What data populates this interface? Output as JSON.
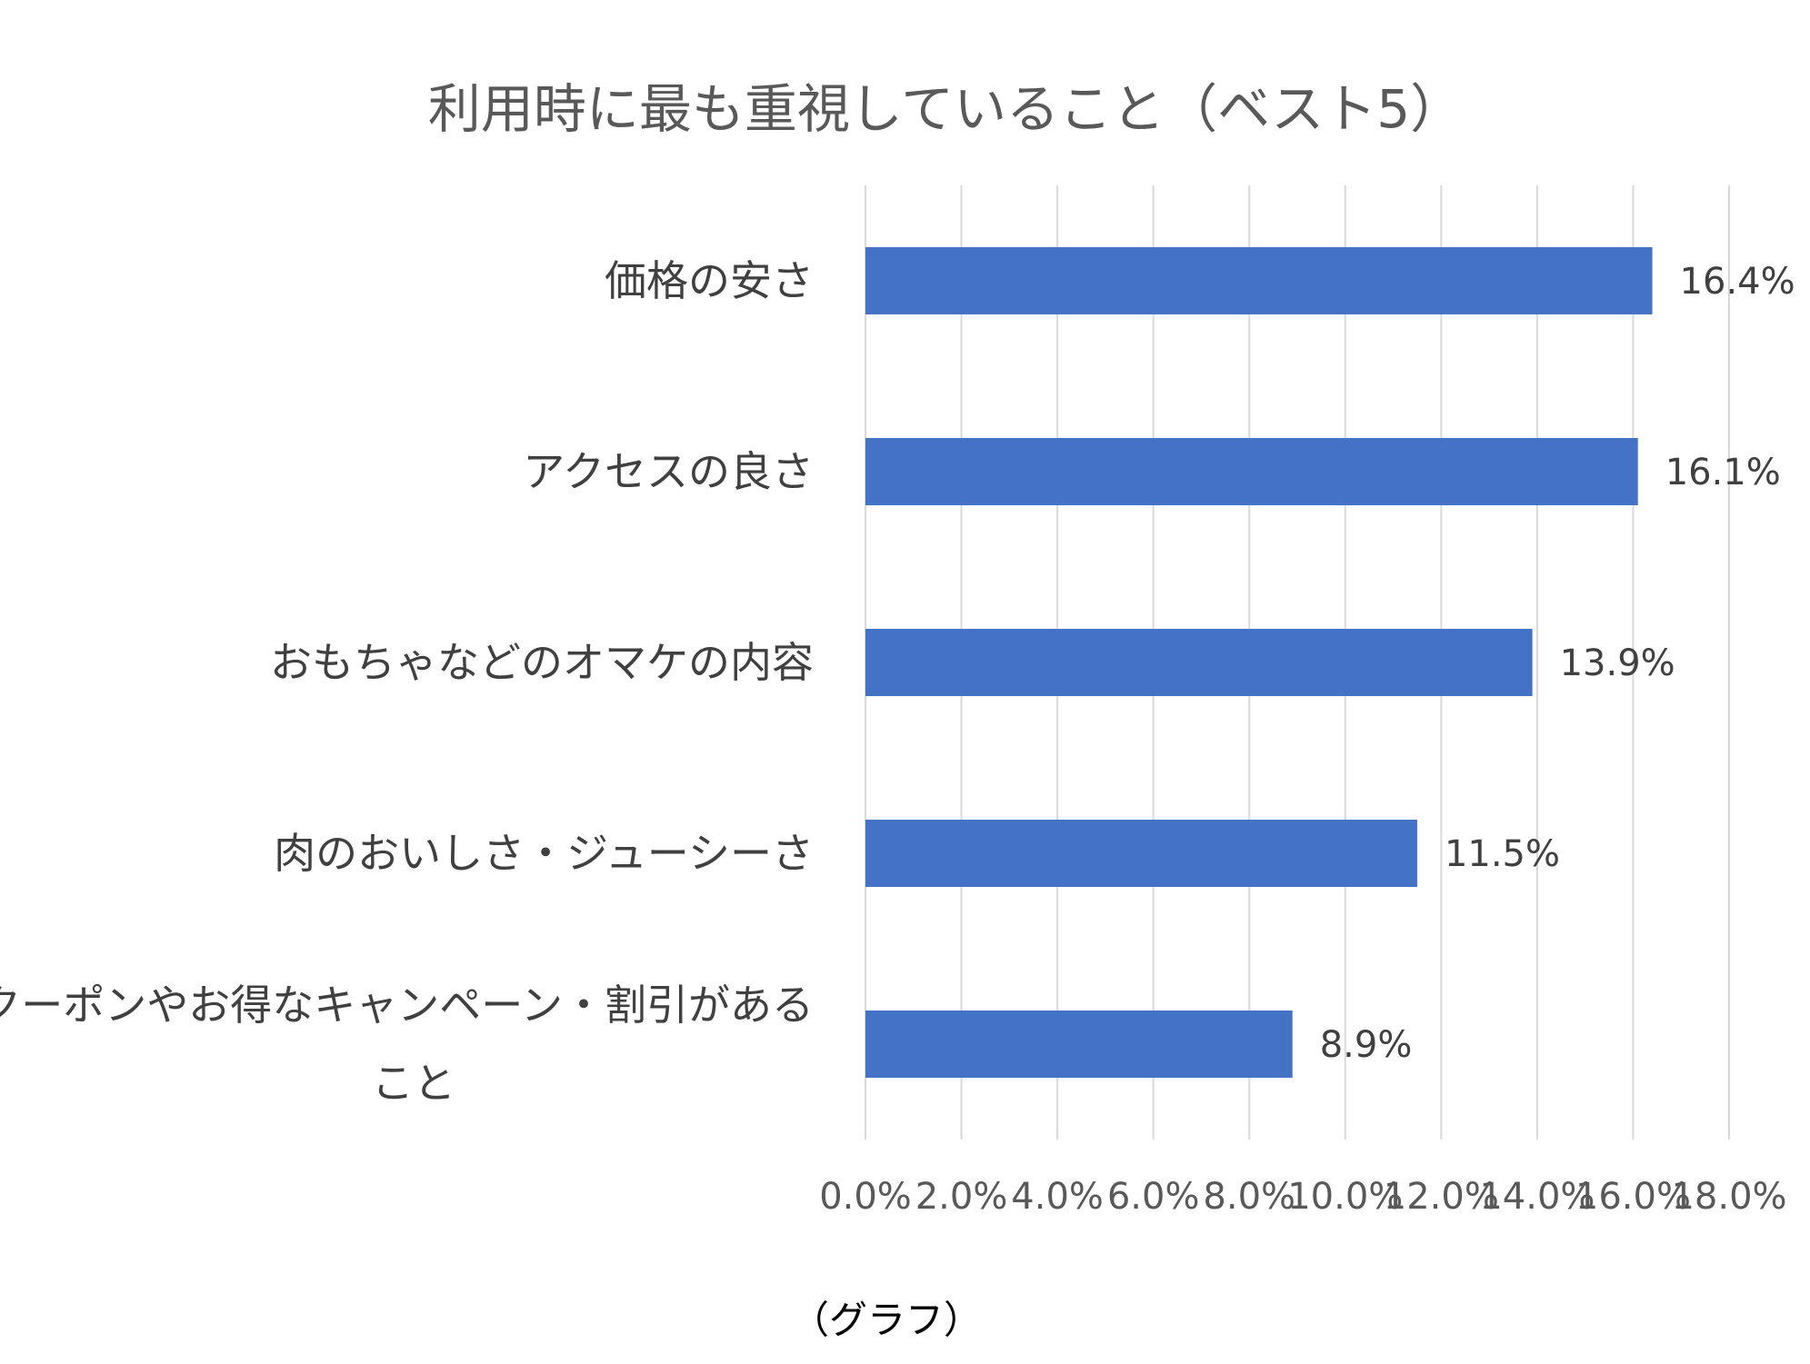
{
  "chart_data": {
    "type": "bar",
    "orientation": "horizontal",
    "title": "利用時に最も重視していること（ベスト5）",
    "categories": [
      "価格の安さ",
      "アクセスの良さ",
      "おもちゃなどのオマケの内容",
      "肉のおいしさ・ジューシーさ",
      "クーポンやお得なキャンペーン・割引があること"
    ],
    "category_lines": [
      [
        "価格の安さ"
      ],
      [
        "アクセスの良さ"
      ],
      [
        "おもちゃなどのオマケの内容"
      ],
      [
        "肉のおいしさ・ジューシーさ"
      ],
      [
        "クーポンやお得なキャンペーン・割引がある",
        "こと"
      ]
    ],
    "values": [
      16.4,
      16.1,
      13.9,
      11.5,
      8.9
    ],
    "data_labels": [
      "16.4%",
      "16.1%",
      "13.9%",
      "11.5%",
      "8.9%"
    ],
    "xlim": [
      0,
      18
    ],
    "x_ticks": [
      0,
      2,
      4,
      6,
      8,
      10,
      12,
      14,
      16,
      18
    ],
    "x_tick_labels": [
      "0.0%",
      "2.0%",
      "4.0%",
      "6.0%",
      "8.0%",
      "10.0%",
      "12.0%",
      "14.0%",
      "16.0%",
      "18.0%"
    ],
    "grid": true,
    "bar_color": "#4472c4",
    "caption": "（グラフ）"
  }
}
